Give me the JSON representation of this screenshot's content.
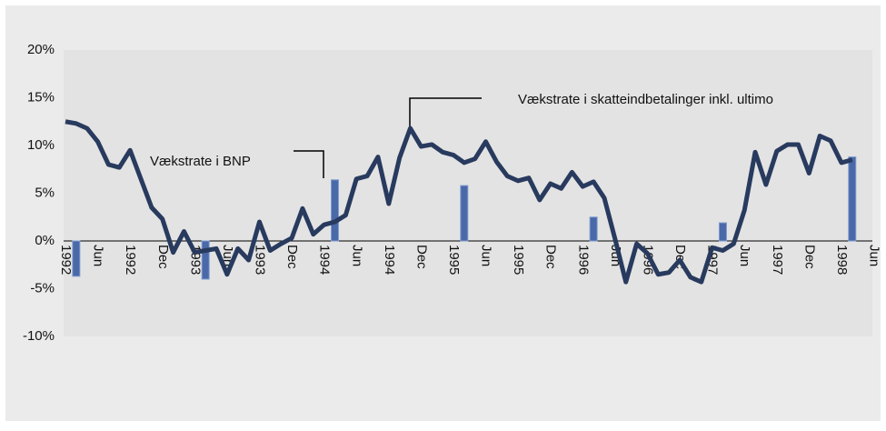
{
  "chart_data": {
    "type": "line",
    "categories": [
      "1992",
      null,
      null,
      "Jun",
      null,
      null,
      "1992",
      null,
      null,
      "Dec",
      null,
      null,
      "1993",
      null,
      null,
      "Jun",
      null,
      null,
      "1993",
      null,
      null,
      "Dec",
      null,
      null,
      "1994",
      null,
      null,
      "Jun",
      null,
      null,
      "1994",
      null,
      null,
      "Dec",
      null,
      null,
      "1995",
      null,
      null,
      "Jun",
      null,
      null,
      "1995",
      null,
      null,
      "Dec",
      null,
      null,
      "1996",
      null,
      null,
      "Jun",
      null,
      null,
      "1996",
      null,
      null,
      "Dec",
      null,
      null,
      "1997",
      null,
      null,
      "Jun",
      null,
      null,
      "1997",
      null,
      null,
      "Dec",
      null,
      null,
      "1998",
      null,
      null,
      "Jun"
    ],
    "series": [
      {
        "type": "bar",
        "color": "#4a69a8",
        "values": [
          null,
          -3.7,
          null,
          null,
          null,
          null,
          null,
          null,
          null,
          null,
          null,
          null,
          null,
          -4.0,
          null,
          null,
          null,
          null,
          null,
          null,
          null,
          null,
          null,
          null,
          null,
          6.4,
          null,
          null,
          null,
          null,
          null,
          null,
          null,
          null,
          null,
          null,
          null,
          5.8,
          null,
          null,
          null,
          null,
          null,
          null,
          null,
          null,
          null,
          null,
          null,
          2.5,
          null,
          null,
          null,
          null,
          null,
          null,
          null,
          null,
          null,
          null,
          null,
          1.9,
          null,
          null,
          null,
          null,
          null,
          null,
          null,
          null,
          null,
          null,
          null,
          8.8,
          null,
          null
        ]
      },
      {
        "type": "line",
        "color": "#283a5e",
        "values": [
          12.5,
          12.3,
          11.8,
          10.4,
          8.0,
          7.7,
          9.5,
          6.5,
          3.5,
          2.3,
          -1.2,
          1.0,
          -1.2,
          -1.0,
          -0.8,
          -3.5,
          -0.8,
          -2.0,
          2.0,
          -1.0,
          -0.3,
          0.3,
          3.4,
          0.7,
          1.7,
          2.0,
          2.7,
          6.5,
          6.8,
          8.8,
          3.9,
          8.7,
          11.8,
          9.9,
          10.1,
          9.3,
          9.0,
          8.2,
          8.6,
          10.4,
          8.3,
          6.8,
          6.3,
          6.6,
          4.3,
          6.0,
          5.5,
          7.2,
          5.7,
          6.2,
          4.5,
          0.2,
          -4.3,
          -0.3,
          -1.3,
          -3.5,
          -3.3,
          -2.0,
          -3.8,
          -4.3,
          -0.7,
          -1.0,
          -0.3,
          3.2,
          9.3,
          5.9,
          9.4,
          10.1,
          10.1,
          7.1,
          11.0,
          10.5,
          8.2,
          8.5,
          null,
          null
        ]
      }
    ],
    "annotations": [
      "Vækstrate i BNP",
      "Vækstrate i skatteindbetalinger inkl. ultimo"
    ],
    "ylim": [
      -10,
      20
    ],
    "yticks": [
      {
        "value": -10,
        "label": "-10%"
      },
      {
        "value": -5,
        "label": "-5%"
      },
      {
        "value": 0,
        "label": "0%"
      },
      {
        "value": 5,
        "label": "5%"
      },
      {
        "value": 10,
        "label": "10%"
      },
      {
        "value": 15,
        "label": "15%"
      },
      {
        "value": 20,
        "label": "20%"
      }
    ]
  }
}
